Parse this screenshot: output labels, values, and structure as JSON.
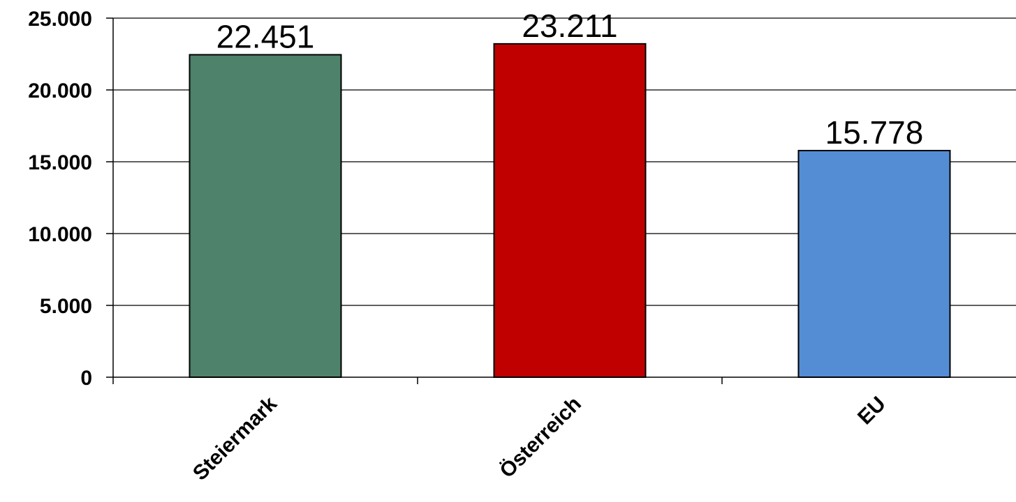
{
  "chart_data": {
    "type": "bar",
    "categories": [
      "Steiermark",
      "Österreich",
      "EU"
    ],
    "values": [
      22451,
      23211,
      15778
    ],
    "data_labels": [
      "22.451",
      "23.211",
      "15.778"
    ],
    "colors": [
      "#4e826a",
      "#c00000",
      "#548dd4"
    ],
    "ylim": [
      0,
      25000
    ],
    "yticks": [
      0,
      5000,
      10000,
      15000,
      20000,
      25000
    ],
    "ytick_labels": [
      "0",
      "5.000",
      "10.000",
      "15.000",
      "20.000",
      "25.000"
    ],
    "grid": true,
    "legend": "none"
  }
}
